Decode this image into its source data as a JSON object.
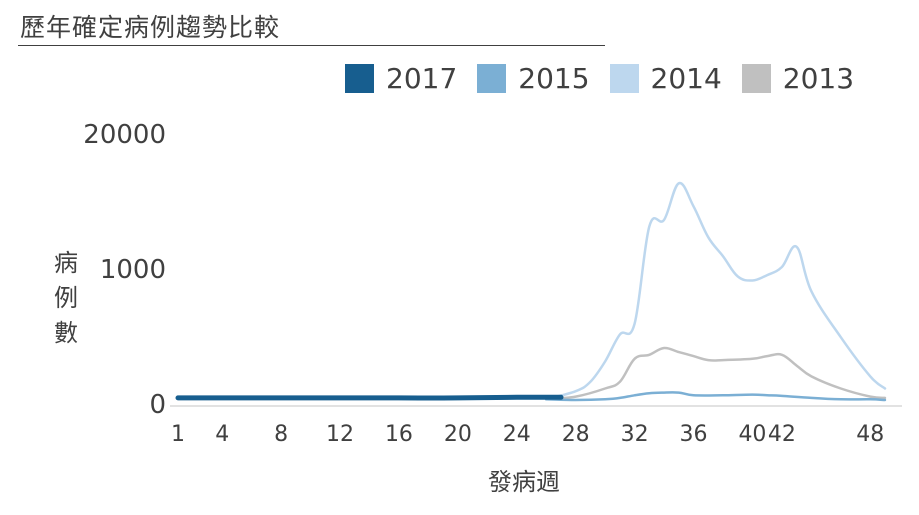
{
  "chart_data": {
    "type": "line",
    "title": "歷年確定病例趨勢比較",
    "xlabel": "發病週",
    "ylabel": "病例數",
    "legend_position": "top",
    "grid": false,
    "x_ticks": [
      1,
      4,
      8,
      12,
      16,
      20,
      24,
      28,
      32,
      36,
      40,
      42,
      48
    ],
    "y_ticks": [
      {
        "label": "0",
        "level": 0
      },
      {
        "label": "1000",
        "level": 1
      },
      {
        "label": "20000",
        "level": 2
      }
    ],
    "x_range": [
      1,
      49
    ],
    "y_range_levels": [
      0,
      2
    ],
    "series": [
      {
        "name": "2017",
        "color": "#175E8F",
        "width": 5,
        "points": [
          [
            1,
            0.03
          ],
          [
            4,
            0.03
          ],
          [
            8,
            0.03
          ],
          [
            12,
            0.03
          ],
          [
            16,
            0.03
          ],
          [
            20,
            0.03
          ],
          [
            24,
            0.035
          ],
          [
            27,
            0.035
          ]
        ]
      },
      {
        "name": "2015",
        "color": "#7BAFD4",
        "width": 2.5,
        "points": [
          [
            26,
            0.02
          ],
          [
            28,
            0.015
          ],
          [
            30,
            0.02
          ],
          [
            31,
            0.03
          ],
          [
            32,
            0.05
          ],
          [
            33,
            0.065
          ],
          [
            34,
            0.07
          ],
          [
            35,
            0.07
          ],
          [
            36,
            0.05
          ],
          [
            38,
            0.05
          ],
          [
            40,
            0.055
          ],
          [
            41,
            0.05
          ],
          [
            42,
            0.045
          ],
          [
            44,
            0.03
          ],
          [
            46,
            0.02
          ],
          [
            48,
            0.02
          ],
          [
            49,
            0.015
          ]
        ]
      },
      {
        "name": "2014",
        "color": "#BDD7EE",
        "width": 2.5,
        "points": [
          [
            26,
            0.02
          ],
          [
            28,
            0.08
          ],
          [
            29,
            0.15
          ],
          [
            30,
            0.3
          ],
          [
            31,
            0.5
          ],
          [
            32,
            0.58
          ],
          [
            33,
            1.3
          ],
          [
            34,
            1.35
          ],
          [
            35,
            1.62
          ],
          [
            36,
            1.45
          ],
          [
            37,
            1.22
          ],
          [
            38,
            1.08
          ],
          [
            39,
            0.93
          ],
          [
            40,
            0.9
          ],
          [
            41,
            0.94
          ],
          [
            42,
            1.0
          ],
          [
            43,
            1.15
          ],
          [
            44,
            0.82
          ],
          [
            46,
            0.48
          ],
          [
            48,
            0.19
          ],
          [
            49,
            0.1
          ]
        ]
      },
      {
        "name": "2013",
        "color": "#C0C0C0",
        "width": 2.5,
        "points": [
          [
            26,
            0.02
          ],
          [
            28,
            0.04
          ],
          [
            30,
            0.1
          ],
          [
            31,
            0.15
          ],
          [
            32,
            0.32
          ],
          [
            33,
            0.35
          ],
          [
            34,
            0.4
          ],
          [
            35,
            0.37
          ],
          [
            36,
            0.34
          ],
          [
            37,
            0.31
          ],
          [
            38,
            0.31
          ],
          [
            40,
            0.32
          ],
          [
            41,
            0.34
          ],
          [
            42,
            0.35
          ],
          [
            43,
            0.27
          ],
          [
            44,
            0.19
          ],
          [
            46,
            0.1
          ],
          [
            48,
            0.04
          ],
          [
            49,
            0.03
          ]
        ]
      }
    ]
  }
}
